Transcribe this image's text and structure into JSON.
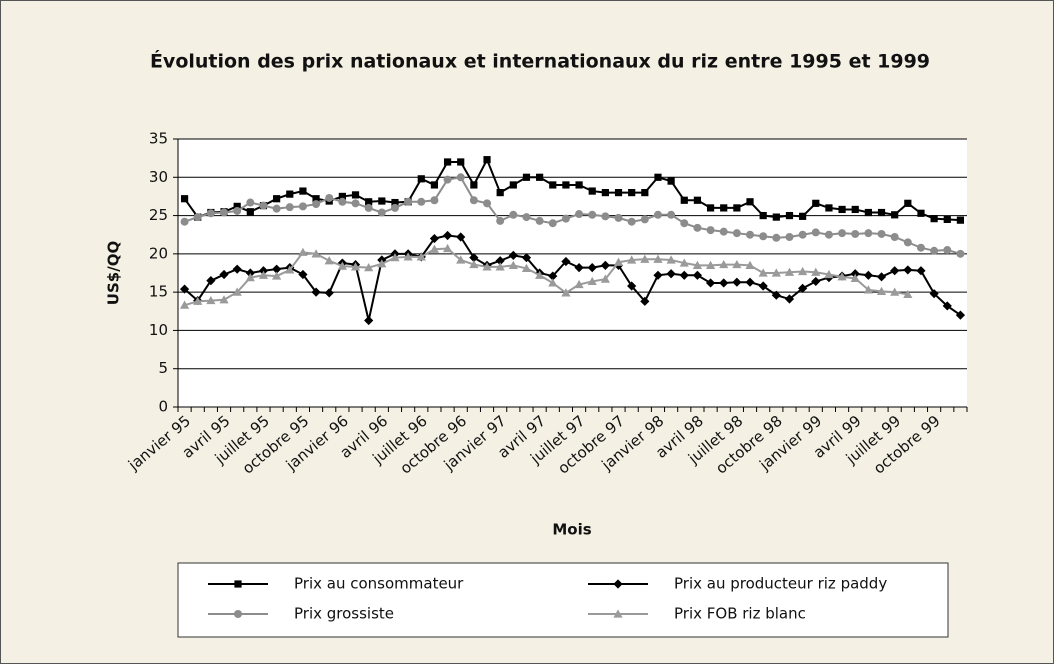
{
  "chart_data": {
    "type": "line",
    "title": "Évolution des prix nationaux et internationaux du riz entre 1995 et 1999",
    "x_label": "Mois",
    "y_label": "US$/QQ",
    "categories": [
      "janvier 95",
      null,
      null,
      "avril 95",
      null,
      null,
      "juillet 95",
      null,
      null,
      "octobre 95",
      null,
      null,
      "janvier 96",
      null,
      null,
      "avril 96",
      null,
      null,
      "juillet 96",
      null,
      null,
      "octobre 96",
      null,
      null,
      "janvier 97",
      null,
      null,
      "avril 97",
      null,
      null,
      "juillet 97",
      null,
      null,
      "octobre 97",
      null,
      null,
      "janvier 98",
      null,
      null,
      "avril 98",
      null,
      null,
      "juillet 98",
      null,
      null,
      "octobre 98",
      null,
      null,
      "janvier 99",
      null,
      null,
      "avril 99",
      null,
      null,
      "juillet 99",
      null,
      null,
      "octobre 99",
      null,
      null
    ],
    "ylim": [
      0,
      35
    ],
    "yticks": [
      0,
      5,
      10,
      15,
      20,
      25,
      30,
      35
    ],
    "grid": true,
    "series": [
      {
        "name": "Prix au consommateur",
        "color": "#000000",
        "marker": "square",
        "values": [
          27.2,
          24.8,
          25.4,
          25.5,
          26.2,
          25.5,
          26.3,
          27.2,
          27.8,
          28.2,
          27.2,
          26.9,
          27.5,
          27.7,
          26.8,
          26.9,
          26.7,
          26.8,
          29.8,
          29,
          32,
          32,
          29,
          32.3,
          28,
          29,
          30,
          30,
          29,
          29,
          29,
          28.2,
          28,
          28,
          28,
          28,
          30,
          29.5,
          27,
          27,
          26,
          26,
          26,
          26.8,
          25,
          24.8,
          25,
          24.9,
          26.6,
          26,
          25.8,
          25.8,
          25.4,
          25.4,
          25.1,
          26.6,
          25.3,
          24.6,
          24.5,
          24.4
        ]
      },
      {
        "name": "Prix au producteur riz paddy",
        "color": "#000000",
        "marker": "diamond",
        "values": [
          15.4,
          13.9,
          16.5,
          17.3,
          18,
          17.5,
          17.8,
          18,
          18.2,
          17.3,
          15,
          14.9,
          18.8,
          18.6,
          11.3,
          19.2,
          20,
          20,
          19.6,
          22,
          22.4,
          22.2,
          19.5,
          18.5,
          19.1,
          19.8,
          19.5,
          17.5,
          17.1,
          19,
          18.2,
          18.2,
          18.5,
          18.5,
          15.8,
          13.8,
          17.2,
          17.4,
          17.2,
          17.2,
          16.2,
          16.2,
          16.3,
          16.3,
          15.8,
          14.6,
          14.1,
          15.5,
          16.4,
          16.9,
          17.1,
          17.4,
          17.2,
          17,
          17.8,
          17.9,
          17.8,
          14.8,
          13.2,
          12
        ]
      },
      {
        "name": "Prix grossiste",
        "color": "#8c8c8c",
        "marker": "circle",
        "values": [
          24.2,
          24.8,
          25.3,
          25.4,
          25.6,
          26.7,
          26.3,
          25.9,
          26.1,
          26.2,
          26.5,
          27.3,
          26.8,
          26.6,
          26,
          25.4,
          26,
          26.8,
          26.8,
          27,
          29.7,
          30,
          27,
          26.6,
          24.3,
          25.1,
          24.8,
          24.3,
          24,
          24.6,
          25.2,
          25.1,
          24.9,
          24.7,
          24.2,
          24.5,
          25.1,
          25.1,
          24,
          23.4,
          23.1,
          22.9,
          22.7,
          22.5,
          22.3,
          22.1,
          22.2,
          22.5,
          22.8,
          22.5,
          22.7,
          22.6,
          22.7,
          22.6,
          22.2,
          21.5,
          20.8,
          20.4,
          20.5,
          20
        ]
      },
      {
        "name": "Prix FOB riz blanc",
        "color": "#9a9a9a",
        "marker": "triangle",
        "values": [
          13.3,
          13.8,
          13.9,
          14,
          15,
          16.9,
          17.2,
          17.1,
          17.9,
          20.2,
          20,
          19.1,
          18.4,
          18.3,
          18.2,
          18.7,
          19.5,
          19.6,
          19.6,
          20.6,
          20.7,
          19.2,
          18.6,
          18.3,
          18.3,
          18.5,
          18.1,
          17.2,
          16.2,
          14.9,
          16,
          16.4,
          16.7,
          18.9,
          19.2,
          19.3,
          19.3,
          19.2,
          18.8,
          18.5,
          18.5,
          18.6,
          18.6,
          18.5,
          17.5,
          17.5,
          17.6,
          17.7,
          17.6,
          17.3,
          17,
          16.8,
          15.3,
          15.1,
          15,
          14.7,
          null,
          null,
          null,
          null
        ]
      }
    ]
  }
}
